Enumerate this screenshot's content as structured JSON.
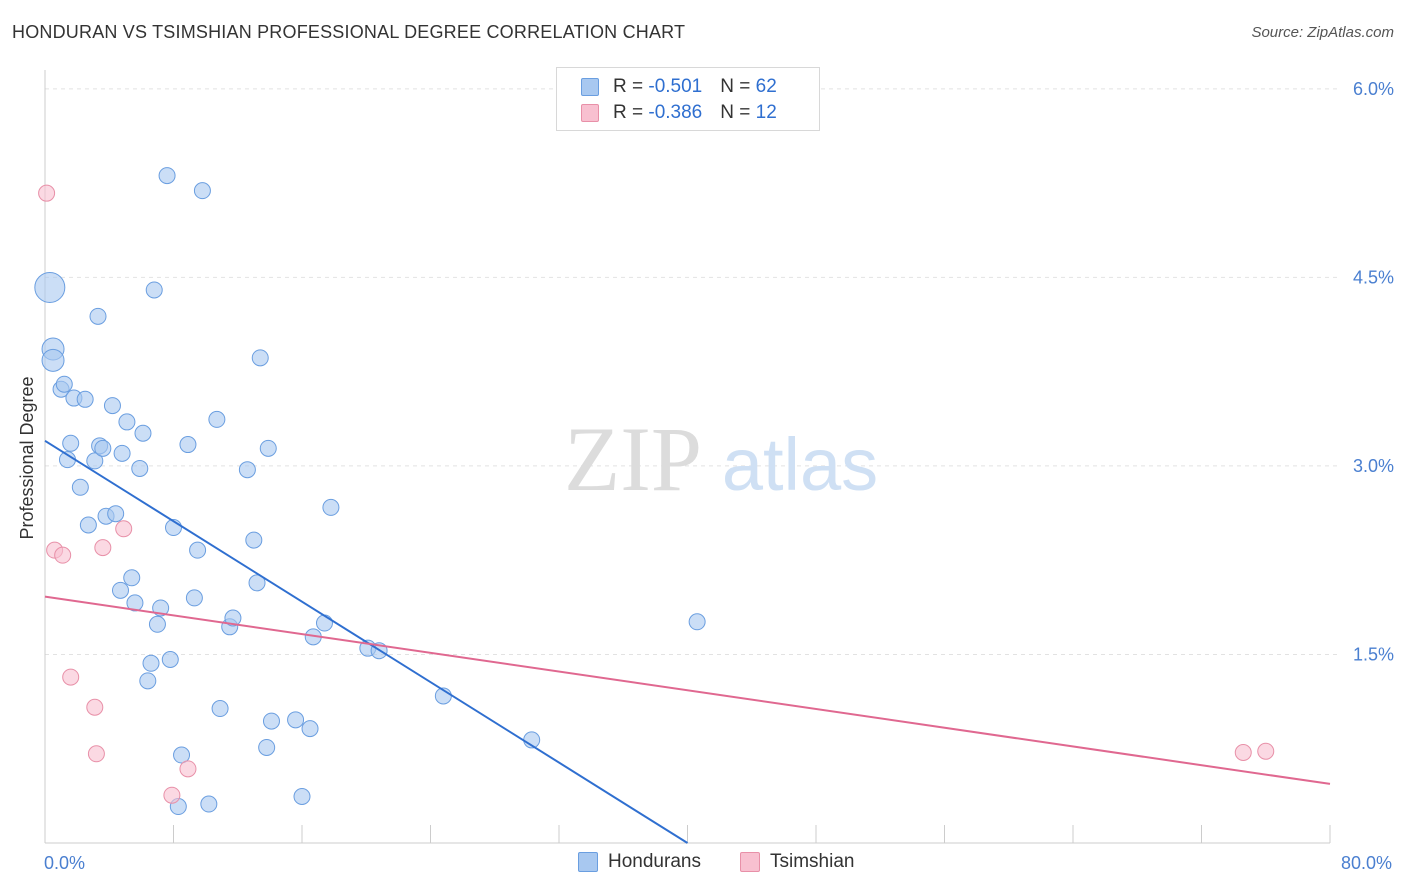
{
  "header": {
    "title": "HONDURAN VS TSIMSHIAN PROFESSIONAL DEGREE CORRELATION CHART",
    "source": "Source: ZipAtlas.com"
  },
  "watermark": {
    "zip": "ZIP",
    "atlas": "atlas"
  },
  "legend": {
    "rows": [
      {
        "r_label": "R = ",
        "r_value": "-0.501",
        "n_label": "N = ",
        "n_value": "62",
        "color": "#a8c8f0",
        "border": "#6a9ee0"
      },
      {
        "r_label": "R = ",
        "r_value": "-0.386",
        "n_label": "N = ",
        "n_value": "12",
        "color": "#f8c0d0",
        "border": "#e890a8"
      }
    ]
  },
  "bottom_legend": [
    {
      "label": "Hondurans",
      "color": "#a8c8f0",
      "border": "#6a9ee0"
    },
    {
      "label": "Tsimshian",
      "color": "#f8c0d0",
      "border": "#e890a8"
    }
  ],
  "chart_data": {
    "type": "scatter",
    "title": "HONDURAN VS TSIMSHIAN PROFESSIONAL DEGREE CORRELATION CHART",
    "xlabel": "",
    "ylabel": "Professional Degree",
    "xlim": [
      0,
      80
    ],
    "ylim": [
      0,
      6.15
    ],
    "x_tick_labels": [
      "0.0%",
      "80.0%"
    ],
    "y_ticks": [
      1.5,
      3.0,
      4.5,
      6.0
    ],
    "y_tick_labels": [
      "1.5%",
      "3.0%",
      "4.5%",
      "6.0%"
    ],
    "grid": true,
    "series": [
      {
        "name": "Hondurans",
        "color": "#a8c8f0",
        "stroke": "#6a9ee0",
        "trend_color": "#2f6fd0",
        "trend": {
          "x": [
            0,
            40
          ],
          "y": [
            3.2,
            0.0
          ]
        },
        "points": [
          [
            0.3,
            4.42,
            3
          ],
          [
            0.5,
            3.93,
            2
          ],
          [
            0.5,
            3.84,
            2
          ],
          [
            1.0,
            3.61,
            1
          ],
          [
            1.2,
            3.65,
            1
          ],
          [
            1.4,
            3.05,
            1
          ],
          [
            1.6,
            3.18,
            1
          ],
          [
            1.8,
            3.54,
            1
          ],
          [
            2.2,
            2.83,
            1
          ],
          [
            2.5,
            3.53,
            1
          ],
          [
            2.7,
            2.53,
            1
          ],
          [
            3.1,
            3.04,
            1
          ],
          [
            3.3,
            4.19,
            1
          ],
          [
            3.4,
            3.16,
            1
          ],
          [
            3.6,
            3.14,
            1
          ],
          [
            3.8,
            2.6,
            1
          ],
          [
            4.2,
            3.48,
            1
          ],
          [
            4.4,
            2.62,
            1
          ],
          [
            4.7,
            2.01,
            1
          ],
          [
            4.8,
            3.1,
            1
          ],
          [
            5.1,
            3.35,
            1
          ],
          [
            5.4,
            2.11,
            1
          ],
          [
            5.6,
            1.91,
            1
          ],
          [
            5.9,
            2.98,
            1
          ],
          [
            6.1,
            3.26,
            1
          ],
          [
            6.4,
            1.29,
            1
          ],
          [
            6.6,
            1.43,
            1
          ],
          [
            6.8,
            4.4,
            1
          ],
          [
            7.0,
            1.74,
            1
          ],
          [
            7.2,
            1.87,
            1
          ],
          [
            7.6,
            5.31,
            1
          ],
          [
            7.8,
            1.46,
            1
          ],
          [
            8.0,
            2.51,
            1
          ],
          [
            8.3,
            0.29,
            1
          ],
          [
            8.5,
            0.7,
            1
          ],
          [
            8.9,
            3.17,
            1
          ],
          [
            9.3,
            1.95,
            1
          ],
          [
            9.5,
            2.33,
            1
          ],
          [
            9.8,
            5.19,
            1
          ],
          [
            10.2,
            0.31,
            1
          ],
          [
            10.7,
            3.37,
            1
          ],
          [
            10.9,
            1.07,
            1
          ],
          [
            11.5,
            1.72,
            1
          ],
          [
            11.7,
            1.79,
            1
          ],
          [
            12.6,
            2.97,
            1
          ],
          [
            13.0,
            2.41,
            1
          ],
          [
            13.2,
            2.07,
            1
          ],
          [
            13.4,
            3.86,
            1
          ],
          [
            13.8,
            0.76,
            1
          ],
          [
            13.9,
            3.14,
            1
          ],
          [
            14.1,
            0.97,
            1
          ],
          [
            15.6,
            0.98,
            1
          ],
          [
            16.0,
            0.37,
            1
          ],
          [
            16.5,
            0.91,
            1
          ],
          [
            16.7,
            1.64,
            1
          ],
          [
            17.4,
            1.75,
            1
          ],
          [
            17.8,
            2.67,
            1
          ],
          [
            20.1,
            1.55,
            1
          ],
          [
            20.8,
            1.53,
            1
          ],
          [
            24.8,
            1.17,
            1
          ],
          [
            30.3,
            0.82,
            1
          ],
          [
            40.6,
            1.76,
            1
          ]
        ]
      },
      {
        "name": "Tsimshian",
        "color": "#f8c0d0",
        "stroke": "#e890a8",
        "trend_color": "#e06890",
        "trend": {
          "x": [
            0,
            80
          ],
          "y": [
            1.96,
            0.47
          ]
        },
        "points": [
          [
            0.1,
            5.17,
            1
          ],
          [
            0.6,
            2.33,
            1
          ],
          [
            1.1,
            2.29,
            1
          ],
          [
            1.6,
            1.32,
            1
          ],
          [
            3.1,
            1.08,
            1
          ],
          [
            3.2,
            0.71,
            1
          ],
          [
            3.6,
            2.35,
            1
          ],
          [
            4.9,
            2.5,
            1
          ],
          [
            7.9,
            0.38,
            1
          ],
          [
            8.9,
            0.59,
            1
          ],
          [
            74.6,
            0.72,
            1
          ],
          [
            76.0,
            0.73,
            1
          ]
        ]
      }
    ]
  }
}
